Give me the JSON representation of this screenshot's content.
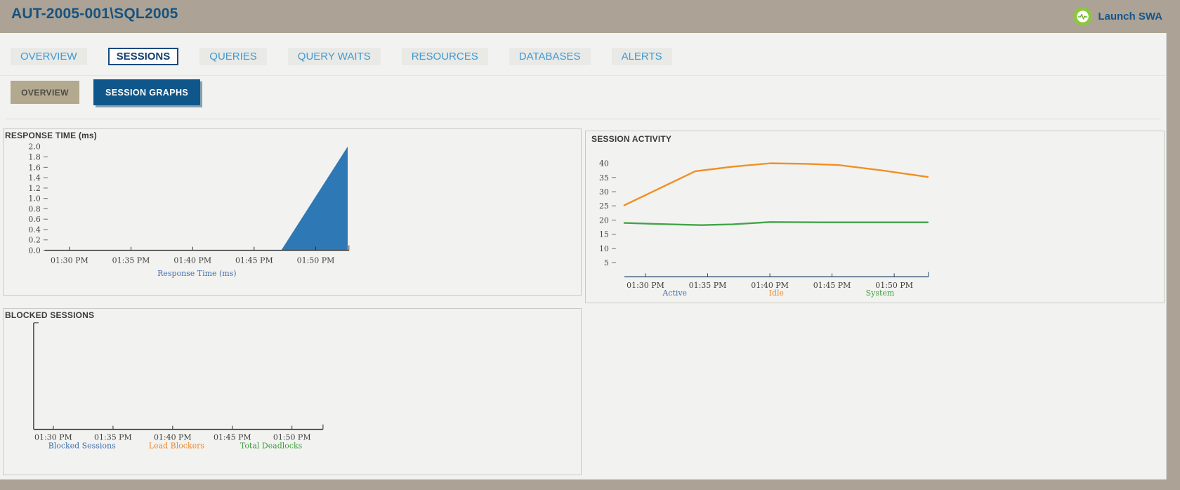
{
  "header": {
    "title": "AUT-2005-001\\SQL2005",
    "launch_button": "Launch SWA"
  },
  "tabs": [
    {
      "label": "OVERVIEW",
      "active": false
    },
    {
      "label": "SESSIONS",
      "active": true
    },
    {
      "label": "QUERIES",
      "active": false
    },
    {
      "label": "QUERY WAITS",
      "active": false
    },
    {
      "label": "RESOURCES",
      "active": false
    },
    {
      "label": "DATABASES",
      "active": false
    },
    {
      "label": "ALERTS",
      "active": false
    }
  ],
  "subtabs": [
    {
      "label": "OVERVIEW",
      "active": false
    },
    {
      "label": "SESSION GRAPHS",
      "active": true
    }
  ],
  "colors": {
    "chrome_tan": "#aca396",
    "content_bg": "#f2f2f0",
    "accent_navy": "#0f578b",
    "tab_blue": "#3e9ad2",
    "launch_green": "#8dc63f",
    "series_blue": "#2e78b5",
    "series_orange": "#f18f21",
    "series_green": "#43a349"
  },
  "chart_data": [
    {
      "key": "response_time",
      "type": "area",
      "title": "RESPONSE TIME (ms)",
      "xlim_minutes": [
        28.0,
        52.7
      ],
      "ylim": [
        0,
        2.0
      ],
      "y_ticks": {
        "labels": [
          "2.0",
          "1.8",
          "1.6",
          "1.4",
          "1.2",
          "1.0",
          "0.8",
          "0.6",
          "0.4",
          "0.2",
          "0.0"
        ],
        "values": [
          2.0,
          1.8,
          1.6,
          1.4,
          1.2,
          1.0,
          0.8,
          0.6,
          0.4,
          0.2,
          0.0
        ]
      },
      "x_ticks": [
        {
          "label": "01:30 PM",
          "t": 30
        },
        {
          "label": "01:35 PM",
          "t": 35
        },
        {
          "label": "01:40 PM",
          "t": 40
        },
        {
          "label": "01:45 PM",
          "t": 45
        },
        {
          "label": "01:50 PM",
          "t": 50
        }
      ],
      "series": [
        {
          "name": "Response Time (ms)",
          "color": "#2e78b5",
          "fill": true,
          "points": [
            [
              47.2,
              0
            ],
            [
              52.6,
              2.0
            ]
          ]
        }
      ],
      "legend": [
        {
          "label": "Response Time (ms)",
          "color": "#3f6fae"
        }
      ],
      "axis_color": "#2b2b2b"
    },
    {
      "key": "session_activity",
      "type": "line",
      "title": "SESSION ACTIVITY",
      "xlim_minutes": [
        28.3,
        52.75
      ],
      "ylim": [
        0,
        40
      ],
      "y_ticks": {
        "labels": [
          "40",
          "35",
          "30",
          "25",
          "20",
          "15",
          "10",
          "5"
        ],
        "values": [
          40,
          35,
          30,
          25,
          20,
          15,
          10,
          5
        ]
      },
      "x_ticks": [
        {
          "label": "01:30 PM",
          "t": 30
        },
        {
          "label": "01:35 PM",
          "t": 35
        },
        {
          "label": "01:40 PM",
          "t": 40
        },
        {
          "label": "01:45 PM",
          "t": 45
        },
        {
          "label": "01:50 PM",
          "t": 50
        }
      ],
      "series": [
        {
          "name": "Idle",
          "color": "#f18f21",
          "points": [
            [
              28.3,
              25.2
            ],
            [
              34,
              37.2
            ],
            [
              37,
              38.8
            ],
            [
              40,
              40
            ],
            [
              43,
              39.8
            ],
            [
              45.5,
              39.4
            ],
            [
              49,
              37.5
            ],
            [
              52.7,
              35.2
            ]
          ]
        },
        {
          "name": "System",
          "color": "#43a349",
          "points": [
            [
              28.3,
              19
            ],
            [
              31,
              18.6
            ],
            [
              34.5,
              18.2
            ],
            [
              37,
              18.5
            ],
            [
              40,
              19.3
            ],
            [
              44,
              19.2
            ],
            [
              48,
              19.2
            ],
            [
              52.7,
              19.2
            ]
          ]
        }
      ],
      "legend": [
        {
          "label": "Active",
          "color": "#3f6fae"
        },
        {
          "label": "Idle",
          "color": "#ef8829"
        },
        {
          "label": "System",
          "color": "#3fa13d"
        }
      ],
      "axis_color": "#2c4a6e"
    },
    {
      "key": "blocked_sessions",
      "type": "line",
      "title": "BLOCKED SESSIONS",
      "xlim_minutes": [
        28.35,
        52.6
      ],
      "ylim": [
        0,
        1
      ],
      "x_ticks": [
        {
          "label": "01:30 PM",
          "t": 30
        },
        {
          "label": "01:35 PM",
          "t": 35
        },
        {
          "label": "01:40 PM",
          "t": 40
        },
        {
          "label": "01:45 PM",
          "t": 45
        },
        {
          "label": "01:50 PM",
          "t": 50
        }
      ],
      "series": [],
      "legend": [
        {
          "label": "Blocked Sessions",
          "color": "#3f6fae"
        },
        {
          "label": "Lead Blockers",
          "color": "#ef8829"
        },
        {
          "label": "Total Deadlocks",
          "color": "#3fa13d"
        }
      ],
      "axis_color": "#2b2b2b"
    }
  ]
}
